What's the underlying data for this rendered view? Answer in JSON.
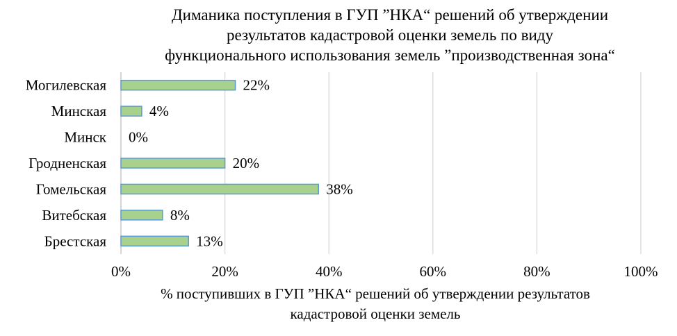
{
  "chart_data": {
    "type": "bar",
    "orientation": "horizontal",
    "title_lines": [
      "Диманика поступления в ГУП ”НКА“ решений об утверждении",
      "результатов  кадастровой оценки земель по виду",
      "функционального  использования земель ”производственная зона“"
    ],
    "xlabel_lines": [
      "% поступивших в ГУП ”НКА“ решений об утверждении результатов",
      "кадастровой оценки земель"
    ],
    "ylabel": "",
    "categories": [
      "Могилевская",
      "Минская",
      "Минск",
      "Гродненская",
      "Гомельская",
      "Витебская",
      "Брестская"
    ],
    "values": [
      22,
      4,
      0,
      20,
      38,
      8,
      13
    ],
    "value_labels": [
      "22%",
      "4%",
      "0%",
      "20%",
      "38%",
      "8%",
      "13%"
    ],
    "xlim": [
      0,
      100
    ],
    "x_ticks": [
      0,
      20,
      40,
      60,
      80,
      100
    ],
    "x_tick_labels": [
      "0%",
      "20%",
      "40%",
      "60%",
      "80%",
      "100%"
    ],
    "grid": "vertical",
    "legend": "none",
    "bar_fill": "#a9d18e",
    "bar_stroke": "#5b9bd5",
    "grid_color": "#d9d9d9",
    "axis_color": "#bfbfbf"
  }
}
